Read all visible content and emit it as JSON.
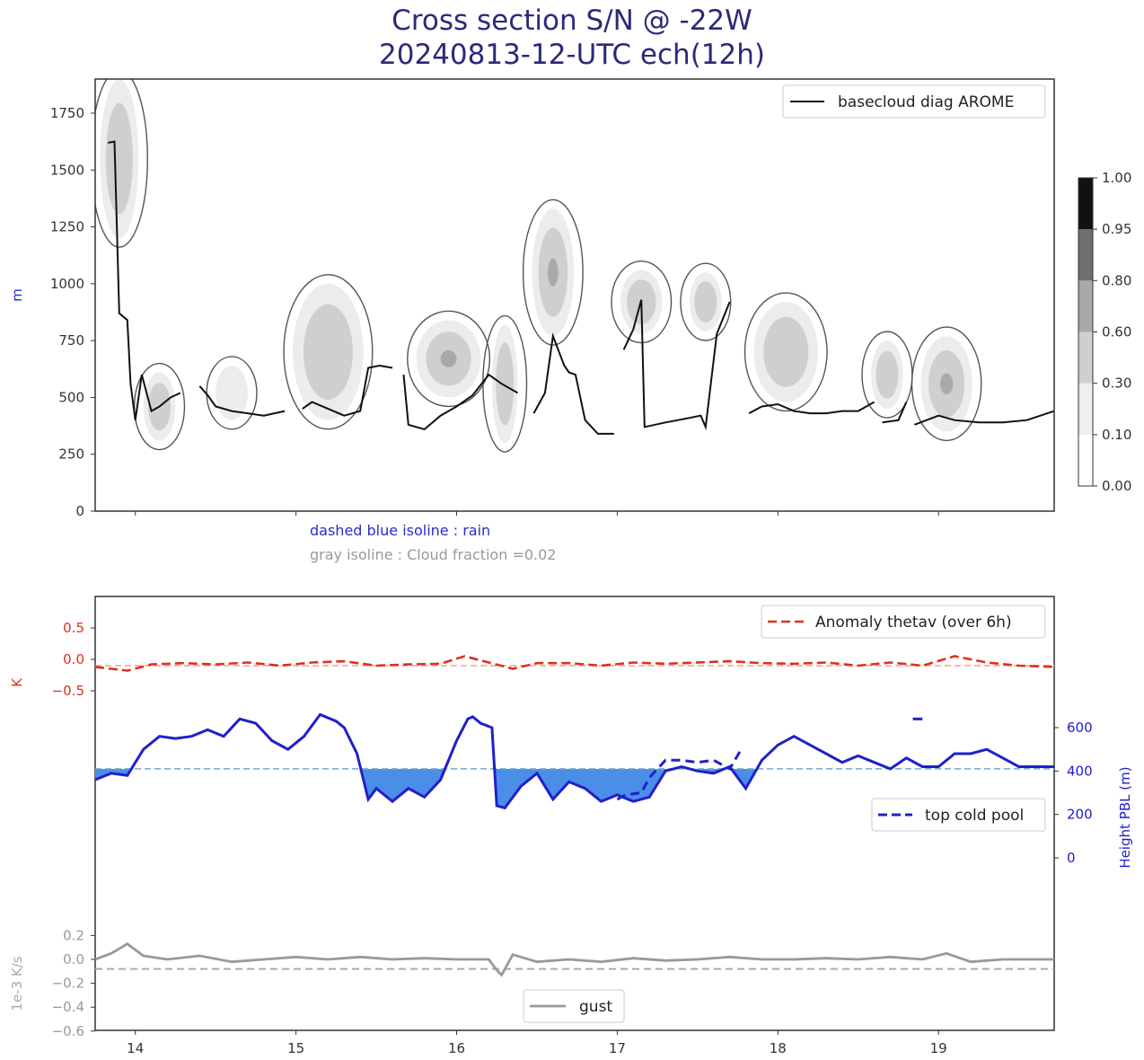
{
  "title": {
    "line1": "Cross section S/N @ -22W",
    "line2": "20240813-12-UTC ech(12h)"
  },
  "colors": {
    "title": "#2a2a7a",
    "red": "#e03020",
    "blue": "#2020c8",
    "fill_blue": "#4a8ee8",
    "gray": "#999999"
  },
  "chart_data": [
    {
      "type": "heatmap",
      "name_in_legend": "basecloud diag AROME",
      "ylabel": "m",
      "ylim": [
        0,
        1900
      ],
      "xlim": [
        13.75,
        19.72
      ],
      "yticks": [
        0,
        250,
        500,
        750,
        1000,
        1250,
        1500,
        1750
      ],
      "xticks": [
        14,
        15,
        16,
        17,
        18,
        19
      ],
      "legend": "top-right",
      "colorbar": {
        "levels": [
          0.0,
          0.1,
          0.3,
          0.6,
          0.8,
          0.95,
          1.0
        ],
        "labels": [
          "0.00",
          "0.10",
          "0.30",
          "0.60",
          "0.80",
          "0.95",
          "1.00"
        ],
        "colors": [
          "#ffffff",
          "#eeeeee",
          "#cfcfcf",
          "#a9a9a9",
          "#6f6f6f",
          "#111111"
        ]
      },
      "annotations": [
        "dashed blue isoline : rain",
        "gray isoline : Cloud fraction =0.02"
      ],
      "cloud_cells": [
        {
          "x": 13.9,
          "y": 1550,
          "rx": 0.12,
          "ry": 350,
          "v": 0.45
        },
        {
          "x": 14.15,
          "y": 460,
          "rx": 0.1,
          "ry": 150,
          "v": 0.3
        },
        {
          "x": 14.6,
          "y": 520,
          "rx": 0.1,
          "ry": 120,
          "v": 0.25
        },
        {
          "x": 15.2,
          "y": 700,
          "rx": 0.22,
          "ry": 300,
          "v": 0.45
        },
        {
          "x": 15.95,
          "y": 670,
          "rx": 0.2,
          "ry": 170,
          "v": 0.7
        },
        {
          "x": 16.3,
          "y": 560,
          "rx": 0.08,
          "ry": 260,
          "v": 0.35
        },
        {
          "x": 16.6,
          "y": 1050,
          "rx": 0.13,
          "ry": 280,
          "v": 0.65
        },
        {
          "x": 17.15,
          "y": 920,
          "rx": 0.13,
          "ry": 140,
          "v": 0.4
        },
        {
          "x": 17.55,
          "y": 920,
          "rx": 0.1,
          "ry": 130,
          "v": 0.45
        },
        {
          "x": 18.05,
          "y": 700,
          "rx": 0.2,
          "ry": 220,
          "v": 0.35
        },
        {
          "x": 18.68,
          "y": 600,
          "rx": 0.1,
          "ry": 150,
          "v": 0.5
        },
        {
          "x": 19.05,
          "y": 560,
          "rx": 0.16,
          "ry": 210,
          "v": 0.7
        }
      ],
      "basecloud": [
        [
          [
            13.83,
            1620
          ],
          [
            13.87,
            1625
          ],
          [
            13.9,
            870
          ],
          [
            13.95,
            840
          ],
          [
            13.97,
            560
          ],
          [
            14.0,
            400
          ],
          [
            14.04,
            600
          ],
          [
            14.1,
            440
          ],
          [
            14.15,
            460
          ],
          [
            14.22,
            500
          ],
          [
            14.28,
            520
          ]
        ],
        [
          [
            14.4,
            550
          ],
          [
            14.45,
            510
          ],
          [
            14.5,
            460
          ],
          [
            14.6,
            440
          ],
          [
            14.7,
            430
          ],
          [
            14.8,
            420
          ],
          [
            14.93,
            440
          ]
        ],
        [
          [
            15.04,
            450
          ],
          [
            15.1,
            480
          ],
          [
            15.2,
            450
          ],
          [
            15.3,
            420
          ],
          [
            15.4,
            440
          ],
          [
            15.45,
            630
          ],
          [
            15.52,
            640
          ],
          [
            15.6,
            630
          ]
        ],
        [
          [
            15.67,
            600
          ],
          [
            15.7,
            380
          ],
          [
            15.8,
            360
          ],
          [
            15.9,
            420
          ],
          [
            16.0,
            460
          ],
          [
            16.1,
            510
          ],
          [
            16.2,
            600
          ],
          [
            16.28,
            560
          ],
          [
            16.38,
            520
          ]
        ],
        [
          [
            16.48,
            430
          ],
          [
            16.55,
            520
          ],
          [
            16.6,
            770
          ],
          [
            16.67,
            640
          ],
          [
            16.7,
            610
          ],
          [
            16.74,
            600
          ],
          [
            16.8,
            400
          ],
          [
            16.88,
            340
          ],
          [
            16.98,
            340
          ]
        ],
        [
          [
            17.04,
            710
          ],
          [
            17.1,
            800
          ],
          [
            17.15,
            930
          ],
          [
            17.17,
            370
          ],
          [
            17.3,
            390
          ],
          [
            17.45,
            410
          ],
          [
            17.52,
            420
          ],
          [
            17.55,
            370
          ],
          [
            17.62,
            780
          ],
          [
            17.7,
            920
          ]
        ],
        [
          [
            17.82,
            430
          ],
          [
            17.9,
            460
          ],
          [
            18.0,
            470
          ],
          [
            18.1,
            440
          ],
          [
            18.2,
            430
          ],
          [
            18.3,
            430
          ],
          [
            18.4,
            440
          ],
          [
            18.5,
            440
          ],
          [
            18.6,
            480
          ]
        ],
        [
          [
            18.65,
            390
          ],
          [
            18.75,
            400
          ],
          [
            18.8,
            480
          ]
        ],
        [
          [
            18.85,
            380
          ],
          [
            19.0,
            420
          ],
          [
            19.1,
            400
          ],
          [
            19.25,
            390
          ],
          [
            19.4,
            390
          ],
          [
            19.55,
            400
          ],
          [
            19.72,
            440
          ]
        ]
      ]
    },
    {
      "type": "line",
      "ylabel": "K",
      "ylim": [
        -0.5,
        0.5
      ],
      "yticks": [
        -0.5,
        0.0,
        0.5
      ],
      "ytick_labels": [
        "−0.5",
        "0.0",
        "0.5"
      ],
      "series": [
        {
          "name": "Anomaly thetav (over 6h)",
          "x": [
            13.75,
            13.85,
            13.95,
            14.1,
            14.3,
            14.5,
            14.7,
            14.9,
            15.1,
            15.3,
            15.5,
            15.7,
            15.9,
            16.05,
            16.2,
            16.35,
            16.5,
            16.7,
            16.9,
            17.1,
            17.3,
            17.5,
            17.7,
            17.9,
            18.1,
            18.3,
            18.5,
            18.7,
            18.9,
            19.1,
            19.3,
            19.5,
            19.72
          ],
          "y": [
            -0.12,
            -0.15,
            -0.18,
            -0.08,
            -0.06,
            -0.08,
            -0.05,
            -0.1,
            -0.05,
            -0.03,
            -0.1,
            -0.08,
            -0.07,
            0.05,
            -0.05,
            -0.15,
            -0.06,
            -0.06,
            -0.1,
            -0.05,
            -0.07,
            -0.05,
            -0.03,
            -0.06,
            -0.07,
            -0.05,
            -0.1,
            -0.05,
            -0.1,
            0.05,
            -0.05,
            -0.1,
            -0.12
          ]
        }
      ],
      "baseline": -0.1,
      "legend": "top-right"
    },
    {
      "type": "area",
      "ylabel": "Height PBL (m)",
      "ylim": [
        0,
        600
      ],
      "yticks": [
        0,
        200,
        400,
        600
      ],
      "reference": 410,
      "series": [
        {
          "name": "Height PBL",
          "x": [
            13.75,
            13.85,
            13.95,
            14.05,
            14.15,
            14.25,
            14.35,
            14.45,
            14.55,
            14.65,
            14.75,
            14.85,
            14.95,
            15.05,
            15.15,
            15.25,
            15.3,
            15.38,
            15.45,
            15.5,
            15.6,
            15.7,
            15.8,
            15.9,
            16.0,
            16.07,
            16.1,
            16.15,
            16.22,
            16.25,
            16.3,
            16.4,
            16.5,
            16.6,
            16.7,
            16.8,
            16.9,
            17.0,
            17.1,
            17.2,
            17.3,
            17.4,
            17.5,
            17.6,
            17.7,
            17.8,
            17.9,
            18.0,
            18.1,
            18.2,
            18.3,
            18.4,
            18.5,
            18.6,
            18.7,
            18.8,
            18.9,
            19.0,
            19.1,
            19.2,
            19.3,
            19.4,
            19.5,
            19.6,
            19.72
          ],
          "y": [
            360,
            390,
            380,
            500,
            560,
            550,
            560,
            590,
            560,
            640,
            620,
            540,
            500,
            560,
            660,
            630,
            600,
            480,
            270,
            320,
            260,
            320,
            280,
            360,
            540,
            640,
            650,
            620,
            600,
            240,
            230,
            330,
            390,
            270,
            350,
            320,
            260,
            290,
            260,
            280,
            400,
            420,
            400,
            390,
            420,
            320,
            450,
            520,
            560,
            520,
            480,
            440,
            470,
            440,
            410,
            460,
            420,
            420,
            480,
            480,
            500,
            460,
            420,
            420,
            420
          ]
        },
        {
          "name": "top cold pool",
          "x": [
            17.0,
            17.05,
            17.15,
            17.2,
            17.3,
            17.4,
            17.5,
            17.6,
            17.7,
            17.78
          ],
          "y": [
            270,
            290,
            300,
            370,
            450,
            450,
            440,
            450,
            410,
            510
          ]
        }
      ],
      "legend": "right"
    },
    {
      "type": "line",
      "ylabel": "1e-3 K/s",
      "ylim": [
        -0.6,
        0.2
      ],
      "yticks": [
        -0.6,
        -0.4,
        -0.2,
        0.0,
        0.2
      ],
      "ytick_labels": [
        "−0.6",
        "−0.4",
        "−0.2",
        "0.0",
        "0.2"
      ],
      "series": [
        {
          "name": "gust",
          "x": [
            13.75,
            13.85,
            13.95,
            14.05,
            14.2,
            14.4,
            14.6,
            14.8,
            15.0,
            15.2,
            15.4,
            15.6,
            15.8,
            16.0,
            16.2,
            16.25,
            16.28,
            16.35,
            16.5,
            16.7,
            16.9,
            17.1,
            17.3,
            17.5,
            17.7,
            17.9,
            18.1,
            18.3,
            18.5,
            18.7,
            18.9,
            19.05,
            19.2,
            19.4,
            19.6,
            19.72
          ],
          "y": [
            0.0,
            0.05,
            0.13,
            0.03,
            0.0,
            0.03,
            -0.02,
            0.0,
            0.02,
            0.0,
            0.02,
            0.0,
            0.01,
            0.0,
            0.0,
            -0.09,
            -0.13,
            0.04,
            -0.02,
            0.0,
            -0.02,
            0.01,
            -0.01,
            0.0,
            0.02,
            0.0,
            0.0,
            0.01,
            0.0,
            0.02,
            0.0,
            0.05,
            -0.02,
            0.0,
            0.0,
            0.0
          ]
        }
      ],
      "baseline": -0.08,
      "legend": "bottom-center"
    }
  ]
}
